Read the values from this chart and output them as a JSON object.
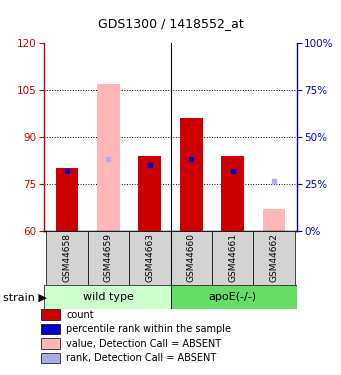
{
  "title": "GDS1300 / 1418552_at",
  "samples": [
    "GSM44658",
    "GSM44659",
    "GSM44663",
    "GSM44660",
    "GSM44661",
    "GSM44662"
  ],
  "ylim_left": [
    60,
    120
  ],
  "ylim_right": [
    0,
    100
  ],
  "yticks_left": [
    60,
    75,
    90,
    105,
    120
  ],
  "yticks_right": [
    0,
    25,
    50,
    75,
    100
  ],
  "ytick_labels_right": [
    "0%",
    "25%",
    "50%",
    "75%",
    "100%"
  ],
  "red_bars_bottom": [
    60,
    60,
    60,
    60,
    60,
    60
  ],
  "red_bars_top": [
    80,
    60,
    84,
    96,
    84,
    60
  ],
  "pink_bars_bottom": [
    60,
    60,
    60,
    60,
    60,
    60
  ],
  "pink_bars_top": [
    60,
    107,
    60,
    60,
    60,
    67
  ],
  "blue_squares_y": [
    79,
    60,
    81,
    83,
    79,
    60
  ],
  "blue_sq_present": [
    true,
    false,
    true,
    true,
    true,
    false
  ],
  "light_blue_squares_y": [
    60,
    83,
    60,
    60,
    60,
    76
  ],
  "light_blue_sq_present": [
    false,
    true,
    false,
    false,
    false,
    true
  ],
  "red_color": "#cc0000",
  "pink_color": "#ffb6b6",
  "blue_color": "#0000cc",
  "light_blue_color": "#aaaaee",
  "left_tick_color": "#cc0000",
  "right_tick_color": "#0000cc",
  "wt_color": "#ccffcc",
  "apoe_color": "#66dd66",
  "sample_col_color": "#d3d3d3",
  "legend_items": [
    [
      "#cc0000",
      "count"
    ],
    [
      "#0000cc",
      "percentile rank within the sample"
    ],
    [
      "#ffb6b6",
      "value, Detection Call = ABSENT"
    ],
    [
      "#aaaaee",
      "rank, Detection Call = ABSENT"
    ]
  ]
}
